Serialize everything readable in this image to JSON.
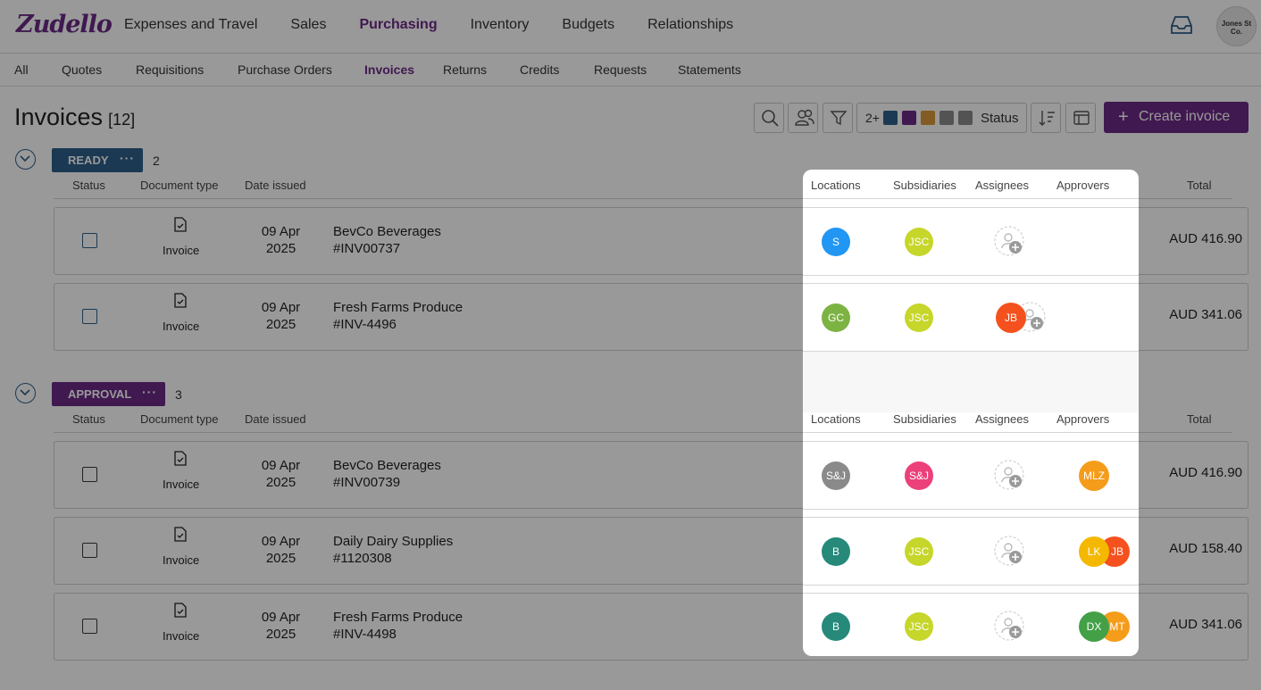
{
  "brand": {
    "logo": "Zudello"
  },
  "main_nav": [
    "Expenses and Travel",
    "Sales",
    "Purchasing",
    "Inventory",
    "Budgets",
    "Relationships"
  ],
  "company_avatar": "Jones St Co.",
  "sub_nav": [
    "All",
    "Quotes",
    "Requisitions",
    "Purchase Orders",
    "Invoices",
    "Returns",
    "Credits",
    "Requests",
    "Statements"
  ],
  "page": {
    "title": "Invoices",
    "count": "[12]"
  },
  "toolbar": {
    "status_count": "2+",
    "status_label": "Status",
    "status_colors": [
      "#2d5f8b",
      "#6b2a86",
      "#d99a3a",
      "#8a8a8a",
      "#8a8a8a"
    ],
    "create_label": "Create invoice"
  },
  "columns": {
    "status": "Status",
    "doc_type": "Document type",
    "date": "Date issued",
    "total": "Total"
  },
  "panel_columns": {
    "locations": "Locations",
    "subsidiaries": "Subsidiaries",
    "assignees": "Assignees",
    "approvers": "Approvers"
  },
  "groups": [
    {
      "name": "READY",
      "count": "2",
      "color": "#2d5f8b",
      "rows": [
        {
          "doc": "Invoice",
          "date": "09 Apr 2025",
          "vendor": "BevCo Beverages",
          "number": "#INV00737",
          "total": "AUD 416.90",
          "location": {
            "text": "S",
            "color": "#2196f3"
          },
          "subsidiary": {
            "text": "JSC",
            "color": "#c6d62a"
          },
          "assignees": [],
          "approvers": []
        },
        {
          "doc": "Invoice",
          "date": "09 Apr 2025",
          "vendor": "Fresh Farms Produce",
          "number": "#INV-4496",
          "total": "AUD 341.06",
          "location": {
            "text": "GC",
            "color": "#7cb342"
          },
          "subsidiary": {
            "text": "JSC",
            "color": "#c6d62a"
          },
          "assignees": [
            {
              "text": "JB",
              "color": "#f4511e"
            }
          ],
          "approvers": []
        }
      ]
    },
    {
      "name": "APPROVAL",
      "count": "3",
      "color": "#6b2a86",
      "rows": [
        {
          "doc": "Invoice",
          "date": "09 Apr 2025",
          "vendor": "BevCo Beverages",
          "number": "#INV00739",
          "total": "AUD 416.90",
          "location": {
            "text": "S&J",
            "color": "#8a8a8a"
          },
          "subsidiary": {
            "text": "S&J",
            "color": "#ec407a"
          },
          "assignees": [],
          "approvers": [
            {
              "text": "MLZ",
              "color": "#f59c1a"
            }
          ]
        },
        {
          "doc": "Invoice",
          "date": "09 Apr 2025",
          "vendor": "Daily Dairy Supplies",
          "number": "#1120308",
          "total": "AUD 158.40",
          "location": {
            "text": "B",
            "color": "#26897a"
          },
          "subsidiary": {
            "text": "JSC",
            "color": "#c6d62a"
          },
          "assignees": [],
          "approvers": [
            {
              "text": "LK",
              "color": "#f5b800"
            },
            {
              "text": "JB",
              "color": "#f4511e"
            }
          ]
        },
        {
          "doc": "Invoice",
          "date": "09 Apr 2025",
          "vendor": "Fresh Farms Produce",
          "number": "#INV-4498",
          "total": "AUD 341.06",
          "location": {
            "text": "B",
            "color": "#26897a"
          },
          "subsidiary": {
            "text": "JSC",
            "color": "#c6d62a"
          },
          "assignees": [],
          "approvers": [
            {
              "text": "DX",
              "color": "#43a047"
            },
            {
              "text": "MT",
              "color": "#f59c1a"
            }
          ]
        }
      ]
    }
  ]
}
